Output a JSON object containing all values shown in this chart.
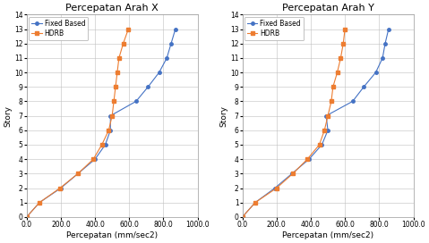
{
  "title_x": "Percepatan Arah X",
  "title_y": "Percepatan Arah Y",
  "xlabel": "Percepatan (mm/sec2)",
  "ylabel": "Story",
  "xlim": [
    0,
    1000
  ],
  "ylim": [
    0,
    14
  ],
  "yticks": [
    0,
    1,
    2,
    3,
    4,
    5,
    6,
    7,
    8,
    9,
    10,
    11,
    12,
    13,
    14
  ],
  "xticks": [
    0.0,
    200.0,
    400.0,
    600.0,
    800.0,
    1000.0
  ],
  "story_levels": [
    0,
    1,
    2,
    3,
    4,
    5,
    6,
    7,
    8,
    9,
    10,
    11,
    12,
    13
  ],
  "x_fixed": [
    0,
    75,
    200,
    300,
    400,
    460,
    490,
    490,
    640,
    710,
    775,
    820,
    845,
    870
  ],
  "x_hdrb": [
    0,
    75,
    195,
    300,
    390,
    440,
    480,
    500,
    510,
    520,
    530,
    540,
    565,
    595
  ],
  "y_fixed": [
    0,
    75,
    190,
    290,
    390,
    465,
    500,
    490,
    645,
    710,
    780,
    820,
    835,
    855
  ],
  "y_hdrb": [
    0,
    75,
    200,
    295,
    380,
    450,
    480,
    500,
    520,
    530,
    555,
    575,
    590,
    600
  ],
  "color_fixed": "#4472C4",
  "color_hdrb": "#ED7D31",
  "marker_fixed": "o",
  "marker_hdrb": "s",
  "legend_fixed": "Fixed Based",
  "legend_hdrb": "HDRB",
  "bg_color": "#ffffff",
  "grid_color": "#bfbfbf",
  "title_fontsize": 8,
  "axis_fontsize": 6.5,
  "tick_fontsize": 5.5,
  "legend_fontsize": 5.5,
  "linewidth": 0.8,
  "markersize": 2.5
}
